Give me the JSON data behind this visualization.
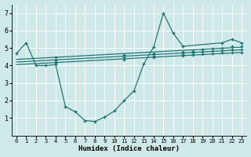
{
  "background_color": "#cfe8e8",
  "grid_color": "#ffffff",
  "line_color": "#1a7070",
  "xlabel": "Humidex (Indice chaleur)",
  "xlim": [
    -0.5,
    23.5
  ],
  "ylim": [
    0,
    7.5
  ],
  "ytick_locs": [
    1,
    2,
    3,
    4,
    5,
    6,
    7
  ],
  "ytick_labels": [
    "1",
    "2",
    "3",
    "4",
    "5",
    "6",
    "7"
  ],
  "xticks": [
    0,
    1,
    2,
    3,
    4,
    5,
    6,
    7,
    8,
    9,
    10,
    11,
    12,
    13,
    14,
    15,
    16,
    17,
    18,
    19,
    20,
    21,
    22,
    23
  ],
  "main_x": [
    0,
    1,
    2,
    3,
    4,
    5,
    6,
    7,
    8,
    9,
    10,
    11,
    12,
    13,
    14,
    15,
    16,
    17,
    21,
    22,
    23
  ],
  "main_y": [
    4.7,
    5.3,
    4.0,
    4.0,
    4.05,
    1.65,
    1.35,
    0.85,
    0.8,
    1.05,
    1.4,
    2.0,
    2.55,
    4.1,
    5.05,
    7.0,
    5.85,
    5.1,
    5.3,
    5.5,
    5.3
  ],
  "line1_x": [
    0,
    23
  ],
  "line1_y": [
    4.05,
    4.75
  ],
  "line2_x": [
    0,
    23
  ],
  "line2_y": [
    4.2,
    4.9
  ],
  "line3_x": [
    0,
    23
  ],
  "line3_y": [
    4.35,
    5.05
  ],
  "line1_pts_x": [
    4,
    11,
    14,
    17,
    18,
    19,
    20,
    21,
    22,
    23
  ],
  "line1_pts_y": [
    4.15,
    4.35,
    4.45,
    4.55,
    4.6,
    4.65,
    4.68,
    4.72,
    4.75,
    4.75
  ],
  "line2_pts_x": [
    4,
    11,
    14,
    17,
    18,
    19,
    20,
    21,
    22,
    23
  ],
  "line2_pts_y": [
    4.3,
    4.45,
    4.55,
    4.65,
    4.72,
    4.78,
    4.82,
    4.88,
    4.92,
    4.92
  ],
  "line3_pts_x": [
    4,
    11,
    14,
    17,
    18,
    19,
    20,
    21,
    22,
    23
  ],
  "line3_pts_y": [
    4.45,
    4.6,
    4.7,
    4.78,
    4.85,
    4.9,
    4.95,
    5.02,
    5.08,
    5.08
  ]
}
